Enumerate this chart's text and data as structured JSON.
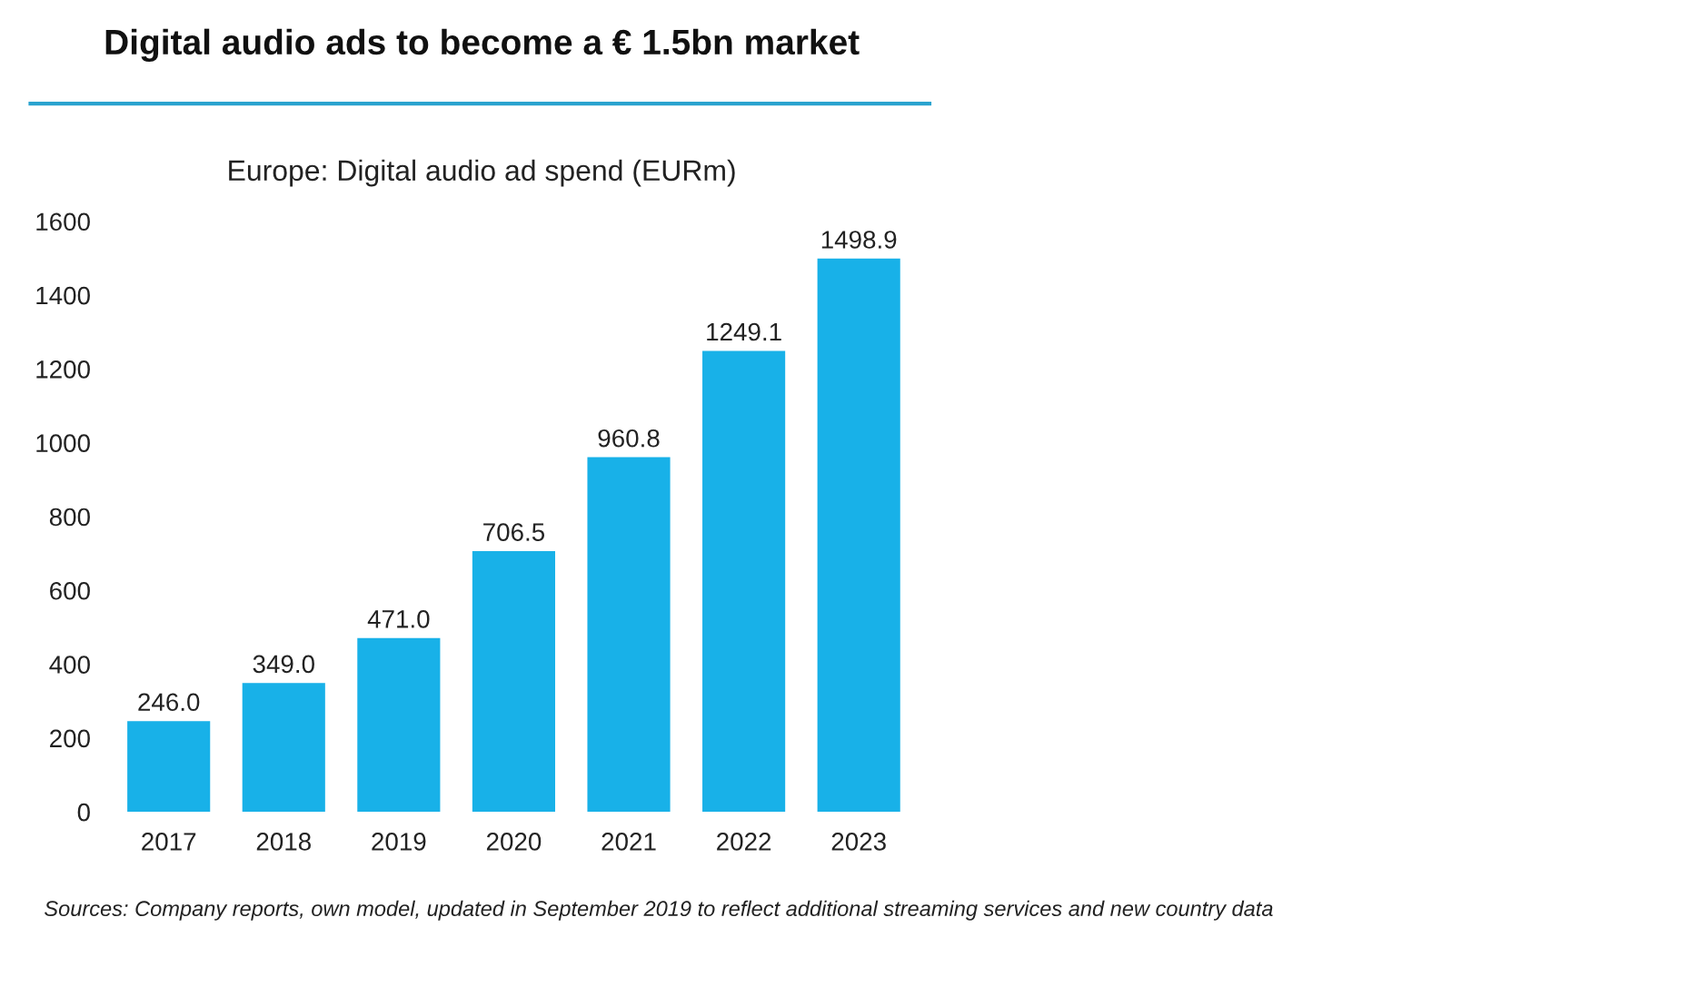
{
  "chart_data": {
    "type": "bar",
    "title": "Digital audio ads to become a € 1.5bn market",
    "subtitle": "Europe: Digital audio ad spend (EURm)",
    "categories": [
      "2017",
      "2018",
      "2019",
      "2020",
      "2021",
      "2022",
      "2023"
    ],
    "values": [
      246.0,
      349.0,
      471.0,
      706.5,
      960.8,
      1249.1,
      1498.9
    ],
    "value_labels": [
      "246.0",
      "349.0",
      "471.0",
      "706.5",
      "960.8",
      "1249.1",
      "1498.9"
    ],
    "color": "#18b1e8",
    "ylim": [
      0,
      1600
    ],
    "yticks": [
      0,
      200,
      400,
      600,
      800,
      1000,
      1200,
      1400,
      1600
    ],
    "grid": false,
    "annotations": [
      "Sources: Company reports, own model, updated in September 2019 to reflect additional streaming services and new country data"
    ]
  }
}
